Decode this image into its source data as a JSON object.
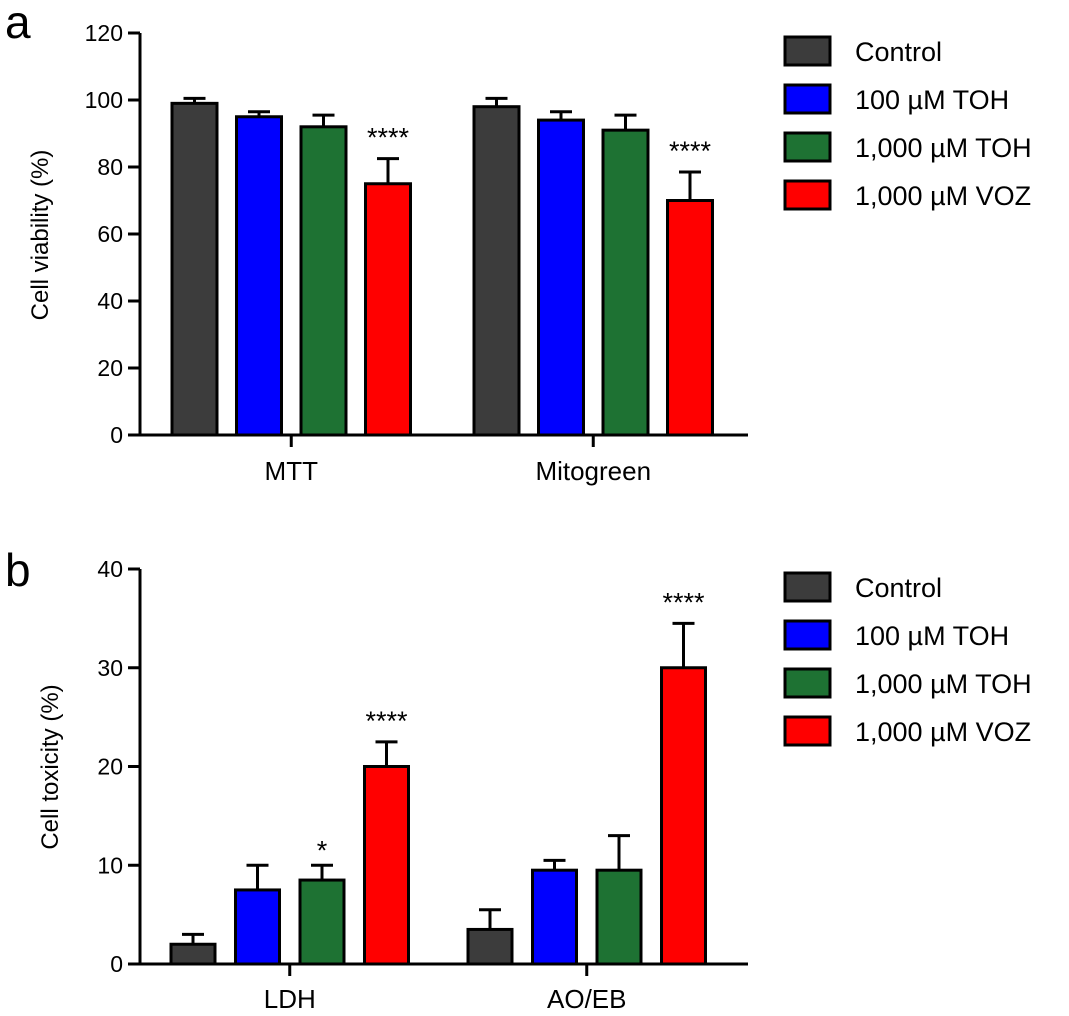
{
  "chart_data": [
    {
      "panel": "a",
      "type": "bar",
      "ylabel": "Cell viability (%)",
      "ylim": [
        0,
        120
      ],
      "yticks": [
        "0",
        "20",
        "40",
        "60",
        "80",
        "100",
        "120"
      ],
      "categories": [
        "MTT",
        "Mitogreen"
      ],
      "series": [
        {
          "name": "Control",
          "color": "#3c3c3c",
          "values": [
            99,
            98
          ],
          "errors": [
            1.5,
            2.5
          ],
          "sig": [
            "",
            ""
          ]
        },
        {
          "name": "100 µM TOH",
          "color": "#0000ff",
          "values": [
            95,
            94
          ],
          "errors": [
            1.5,
            2.5
          ],
          "sig": [
            "",
            ""
          ]
        },
        {
          "name": "1,000 µM TOH",
          "color": "#1e7233",
          "values": [
            92,
            91
          ],
          "errors": [
            3.5,
            4.5
          ],
          "sig": [
            "",
            ""
          ]
        },
        {
          "name": "1,000 µM VOZ",
          "color": "#ff0000",
          "values": [
            75,
            70
          ],
          "errors": [
            7.5,
            8.5
          ],
          "sig": [
            "****",
            "****"
          ]
        }
      ],
      "legend": [
        "Control",
        "100 µM TOH",
        "1,000 µM TOH",
        "1,000 µM VOZ"
      ],
      "legend_position": "right"
    },
    {
      "panel": "b",
      "type": "bar",
      "ylabel": "Cell toxicity (%)",
      "ylim": [
        0,
        40
      ],
      "yticks": [
        "0",
        "10",
        "20",
        "30",
        "40"
      ],
      "categories": [
        "LDH",
        "AO/EB"
      ],
      "series": [
        {
          "name": "Control",
          "color": "#3c3c3c",
          "values": [
            2,
            3.5
          ],
          "errors": [
            1,
            2
          ],
          "sig": [
            "",
            ""
          ]
        },
        {
          "name": "100 µM TOH",
          "color": "#0000ff",
          "values": [
            7.5,
            9.5
          ],
          "errors": [
            2.5,
            1
          ],
          "sig": [
            "",
            ""
          ]
        },
        {
          "name": "1,000 µM TOH",
          "color": "#1e7233",
          "values": [
            8.5,
            9.5
          ],
          "errors": [
            1.5,
            3.5
          ],
          "sig": [
            "*",
            ""
          ]
        },
        {
          "name": "1,000 µM VOZ",
          "color": "#ff0000",
          "values": [
            20,
            30
          ],
          "errors": [
            2.5,
            4.5
          ],
          "sig": [
            "****",
            "****"
          ]
        }
      ],
      "legend": [
        "Control",
        "100 µM TOH",
        "1,000 µM TOH",
        "1,000 µM VOZ"
      ],
      "legend_position": "right"
    }
  ]
}
